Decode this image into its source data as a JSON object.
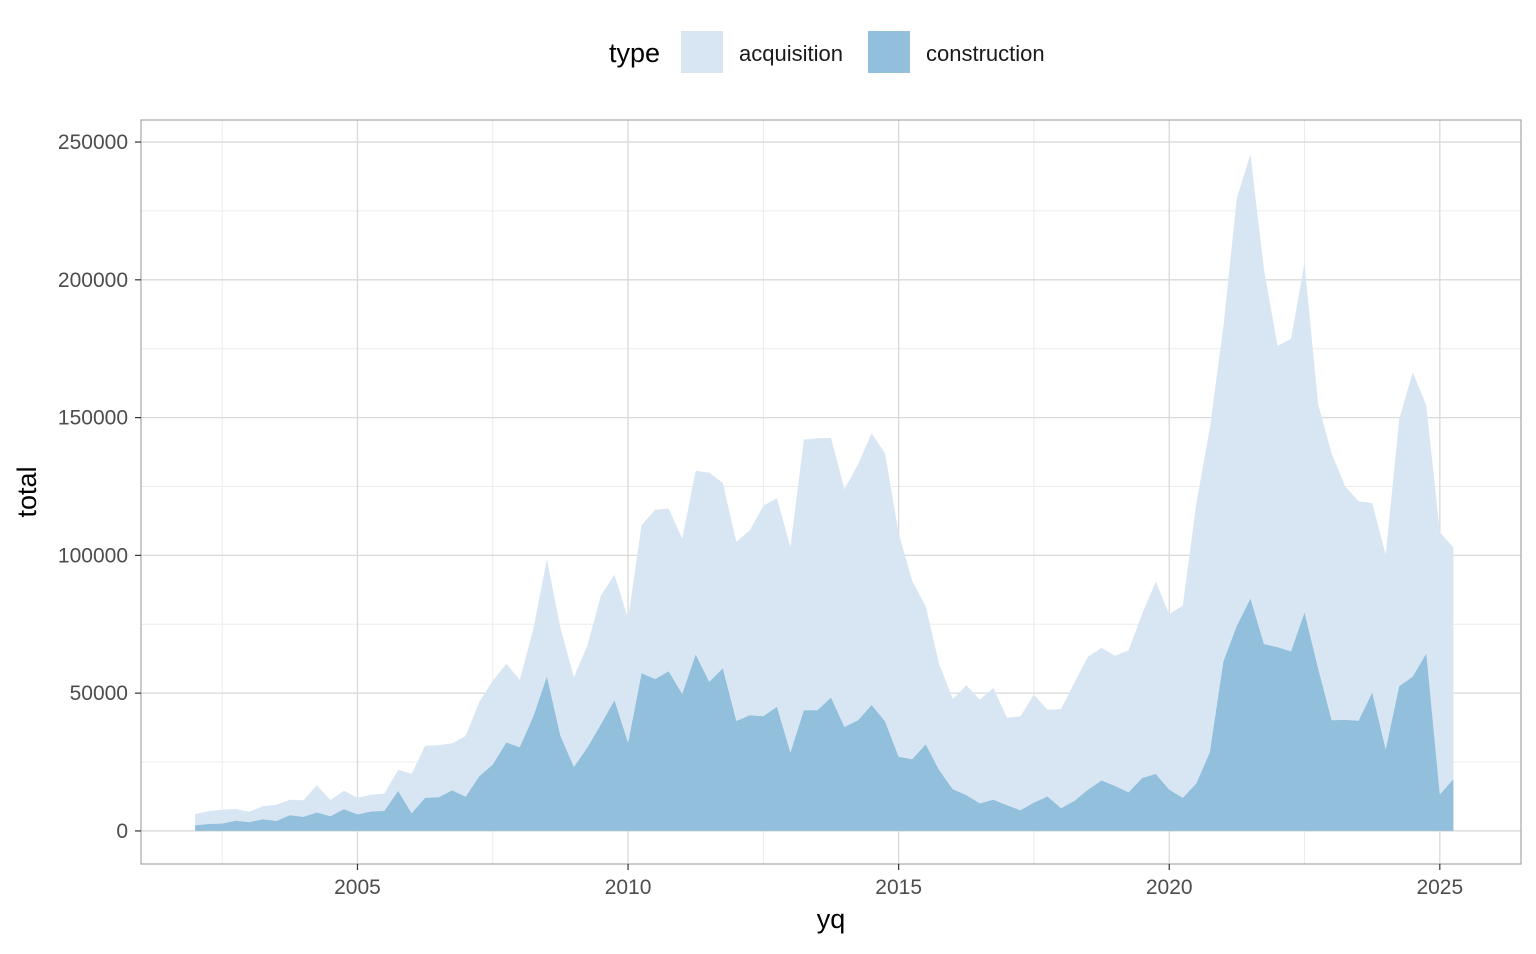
{
  "chart_data": {
    "type": "area",
    "stacked": true,
    "title": "",
    "xlabel": "yq",
    "ylabel": "total",
    "xlim": [
      2001.0,
      2026.5
    ],
    "ylim": [
      -12000,
      258000
    ],
    "x_ticks": [
      2005,
      2010,
      2015,
      2020,
      2025
    ],
    "x_tick_labels": [
      "2005",
      "2010",
      "2015",
      "2020",
      "2025"
    ],
    "y_ticks": [
      0,
      50000,
      100000,
      150000,
      200000,
      250000
    ],
    "y_tick_labels": [
      "0",
      "50000",
      "100000",
      "150000",
      "200000",
      "250000"
    ],
    "grid": true,
    "legend": {
      "title": "type",
      "position": "top",
      "entries": [
        {
          "label": "acquisition",
          "color": "#d8e6f4"
        },
        {
          "label": "construction",
          "color": "#92bfdb"
        }
      ]
    },
    "colors": {
      "acquisition": "#d8e6f4",
      "construction": "#92bfdb",
      "panel_border": "#a6a6a6",
      "grid_major": "#d9d9d9",
      "grid_minor": "#ececec"
    },
    "series": [
      {
        "name": "construction",
        "points": [
          [
            2002.0,
            2000
          ],
          [
            2002.25,
            2500
          ],
          [
            2002.5,
            2700
          ],
          [
            2002.75,
            3700
          ],
          [
            2003.0,
            3200
          ],
          [
            2003.25,
            4200
          ],
          [
            2003.5,
            3600
          ],
          [
            2003.75,
            5700
          ],
          [
            2004.0,
            5100
          ],
          [
            2004.25,
            6700
          ],
          [
            2004.5,
            5300
          ],
          [
            2004.75,
            7900
          ],
          [
            2005.0,
            6000
          ],
          [
            2005.25,
            7000
          ],
          [
            2005.5,
            7300
          ],
          [
            2005.75,
            14500
          ],
          [
            2006.0,
            6400
          ],
          [
            2006.25,
            12000
          ],
          [
            2006.5,
            12200
          ],
          [
            2006.75,
            14700
          ],
          [
            2007.0,
            12400
          ],
          [
            2007.25,
            19800
          ],
          [
            2007.5,
            24100
          ],
          [
            2007.75,
            32100
          ],
          [
            2008.0,
            30400
          ],
          [
            2008.25,
            41600
          ],
          [
            2008.5,
            56000
          ],
          [
            2008.75,
            34500
          ],
          [
            2009.0,
            23200
          ],
          [
            2009.25,
            30300
          ],
          [
            2009.5,
            38700
          ],
          [
            2009.75,
            47400
          ],
          [
            2010.0,
            31900
          ],
          [
            2010.25,
            57200
          ],
          [
            2010.5,
            55100
          ],
          [
            2010.75,
            57900
          ],
          [
            2011.0,
            49700
          ],
          [
            2011.25,
            64000
          ],
          [
            2011.5,
            54100
          ],
          [
            2011.75,
            59000
          ],
          [
            2012.0,
            39900
          ],
          [
            2012.25,
            42000
          ],
          [
            2012.5,
            41600
          ],
          [
            2012.75,
            45000
          ],
          [
            2013.0,
            28400
          ],
          [
            2013.25,
            43800
          ],
          [
            2013.5,
            43800
          ],
          [
            2013.75,
            48400
          ],
          [
            2014.0,
            37700
          ],
          [
            2014.25,
            40200
          ],
          [
            2014.5,
            45700
          ],
          [
            2014.75,
            39700
          ],
          [
            2015.0,
            26900
          ],
          [
            2015.25,
            26000
          ],
          [
            2015.5,
            31400
          ],
          [
            2015.75,
            22000
          ],
          [
            2016.0,
            15100
          ],
          [
            2016.25,
            13000
          ],
          [
            2016.5,
            10000
          ],
          [
            2016.75,
            11300
          ],
          [
            2017.0,
            9300
          ],
          [
            2017.25,
            7500
          ],
          [
            2017.5,
            10300
          ],
          [
            2017.75,
            12500
          ],
          [
            2018.0,
            8200
          ],
          [
            2018.25,
            10900
          ],
          [
            2018.5,
            15000
          ],
          [
            2018.75,
            18300
          ],
          [
            2019.0,
            16300
          ],
          [
            2019.25,
            14000
          ],
          [
            2019.5,
            19200
          ],
          [
            2019.75,
            20700
          ],
          [
            2020.0,
            15000
          ],
          [
            2020.25,
            12000
          ],
          [
            2020.5,
            17200
          ],
          [
            2020.75,
            28500
          ],
          [
            2021.0,
            61500
          ],
          [
            2021.25,
            74500
          ],
          [
            2021.5,
            84300
          ],
          [
            2021.75,
            67800
          ],
          [
            2022.0,
            66700
          ],
          [
            2022.25,
            65100
          ],
          [
            2022.5,
            79200
          ],
          [
            2022.75,
            59000
          ],
          [
            2023.0,
            40200
          ],
          [
            2023.25,
            40300
          ],
          [
            2023.5,
            40000
          ],
          [
            2023.75,
            50200
          ],
          [
            2024.0,
            29500
          ],
          [
            2024.25,
            52500
          ],
          [
            2024.5,
            56000
          ],
          [
            2024.75,
            64400
          ],
          [
            2025.0,
            13200
          ],
          [
            2025.25,
            18800
          ]
        ]
      },
      {
        "name": "acquisition",
        "points": [
          [
            2002.0,
            6100
          ],
          [
            2002.25,
            7200
          ],
          [
            2002.5,
            7700
          ],
          [
            2002.75,
            8000
          ],
          [
            2003.0,
            6900
          ],
          [
            2003.25,
            9000
          ],
          [
            2003.5,
            9500
          ],
          [
            2003.75,
            11300
          ],
          [
            2004.0,
            11100
          ],
          [
            2004.25,
            16600
          ],
          [
            2004.5,
            11200
          ],
          [
            2004.75,
            14600
          ],
          [
            2005.0,
            12000
          ],
          [
            2005.25,
            13100
          ],
          [
            2005.5,
            13600
          ],
          [
            2005.75,
            22200
          ],
          [
            2006.0,
            20700
          ],
          [
            2006.25,
            30900
          ],
          [
            2006.5,
            31100
          ],
          [
            2006.75,
            31800
          ],
          [
            2007.0,
            34500
          ],
          [
            2007.25,
            46800
          ],
          [
            2007.5,
            54500
          ],
          [
            2007.75,
            60700
          ],
          [
            2008.0,
            54800
          ],
          [
            2008.25,
            73400
          ],
          [
            2008.5,
            98600
          ],
          [
            2008.75,
            73700
          ],
          [
            2009.0,
            55800
          ],
          [
            2009.25,
            67400
          ],
          [
            2009.5,
            85500
          ],
          [
            2009.75,
            93000
          ],
          [
            2010.0,
            77000
          ],
          [
            2010.25,
            111000
          ],
          [
            2010.5,
            116500
          ],
          [
            2010.75,
            117000
          ],
          [
            2011.0,
            106000
          ],
          [
            2011.25,
            130700
          ],
          [
            2011.5,
            130000
          ],
          [
            2011.75,
            126300
          ],
          [
            2012.0,
            104900
          ],
          [
            2012.25,
            109100
          ],
          [
            2012.5,
            118000
          ],
          [
            2012.75,
            120800
          ],
          [
            2013.0,
            103000
          ],
          [
            2013.25,
            142000
          ],
          [
            2013.5,
            142500
          ],
          [
            2013.75,
            142600
          ],
          [
            2014.0,
            124000
          ],
          [
            2014.25,
            133100
          ],
          [
            2014.5,
            144300
          ],
          [
            2014.75,
            137000
          ],
          [
            2015.0,
            108000
          ],
          [
            2015.25,
            90800
          ],
          [
            2015.5,
            81500
          ],
          [
            2015.75,
            60500
          ],
          [
            2016.0,
            47800
          ],
          [
            2016.25,
            52900
          ],
          [
            2016.5,
            47600
          ],
          [
            2016.75,
            51900
          ],
          [
            2017.0,
            41100
          ],
          [
            2017.25,
            41600
          ],
          [
            2017.5,
            49400
          ],
          [
            2017.75,
            44000
          ],
          [
            2018.0,
            44200
          ],
          [
            2018.25,
            53900
          ],
          [
            2018.5,
            63300
          ],
          [
            2018.75,
            66400
          ],
          [
            2019.0,
            63600
          ],
          [
            2019.25,
            65600
          ],
          [
            2019.5,
            78800
          ],
          [
            2019.75,
            90400
          ],
          [
            2020.0,
            78600
          ],
          [
            2020.25,
            81800
          ],
          [
            2020.5,
            118800
          ],
          [
            2020.75,
            146100
          ],
          [
            2021.0,
            183100
          ],
          [
            2021.25,
            229800
          ],
          [
            2021.5,
            245500
          ],
          [
            2021.75,
            204000
          ],
          [
            2022.0,
            176000
          ],
          [
            2022.25,
            178600
          ],
          [
            2022.5,
            206000
          ],
          [
            2022.75,
            154900
          ],
          [
            2023.0,
            137000
          ],
          [
            2023.25,
            125100
          ],
          [
            2023.5,
            119600
          ],
          [
            2023.75,
            119000
          ],
          [
            2024.0,
            100200
          ],
          [
            2024.25,
            149400
          ],
          [
            2024.5,
            166500
          ],
          [
            2024.75,
            154400
          ],
          [
            2025.0,
            108500
          ],
          [
            2025.25,
            102800
          ]
        ]
      }
    ]
  }
}
